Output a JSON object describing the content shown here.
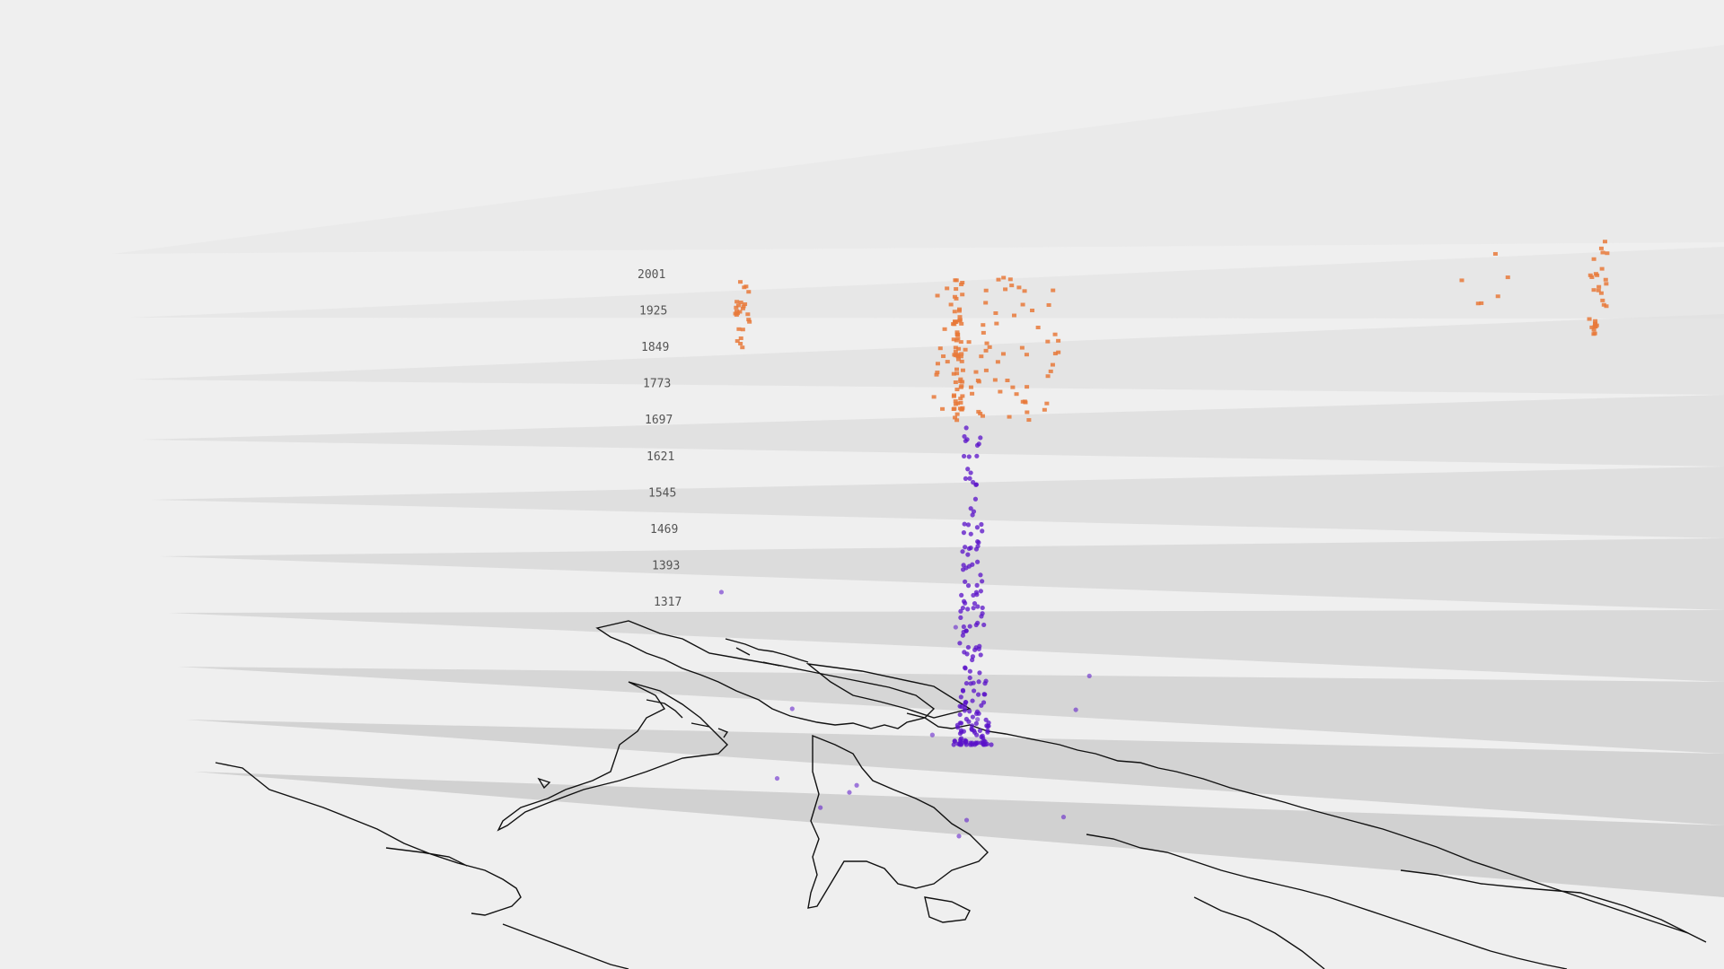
{
  "chart_data": {
    "type": "scatter",
    "view": "3d-perspective",
    "base_layer": "world-coastline-map",
    "z_axis": {
      "tick_labels": [
        "2001",
        "1925",
        "1849",
        "1773",
        "1697",
        "1621",
        "1545",
        "1469",
        "1393",
        "1317"
      ]
    },
    "series": [
      {
        "marker": "square",
        "color": "#e8793a",
        "clusters": [
          {
            "shape": "column",
            "count": 60,
            "z_range": [
              1697,
              2001
            ]
          },
          {
            "shape": "scatter",
            "count": 80,
            "z_range": [
              1697,
              2001
            ]
          },
          {
            "shape": "column",
            "count": 25,
            "z_range": [
              1849,
              2001
            ]
          },
          {
            "shape": "column",
            "count": 30,
            "z_range": [
              1800,
              2001
            ]
          },
          {
            "shape": "scatter",
            "count": 6,
            "z_range": [
              1850,
              2001
            ]
          }
        ]
      },
      {
        "marker": "circle",
        "color": "#5a12c8",
        "clusters": [
          {
            "shape": "dense-column",
            "count": 180,
            "z_range": [
              1317,
              1697
            ]
          },
          {
            "shape": "scatter",
            "count": 14,
            "z_range": [
              1317,
              1450
            ]
          }
        ]
      }
    ],
    "grid": true,
    "legend": "none"
  }
}
